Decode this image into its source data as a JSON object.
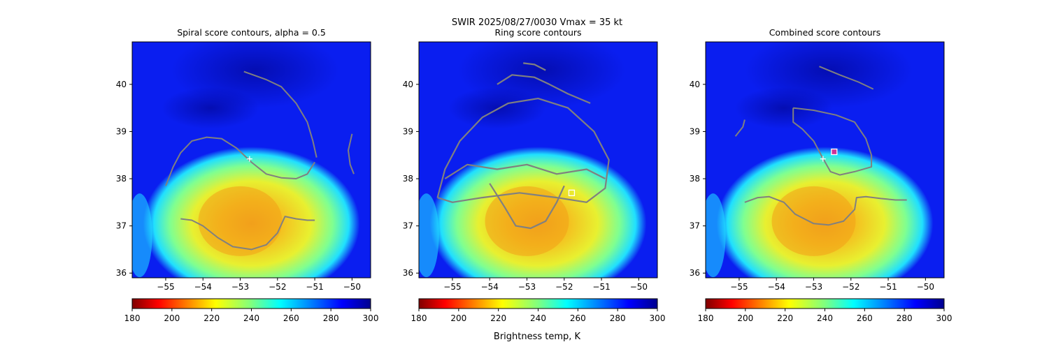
{
  "figure": {
    "suptitle_line": "SWIR  2025/08/27/0030    Vmax = 35 kt",
    "colorbar_label": "Brightness temp, K"
  },
  "chart_data": [
    {
      "type": "heatmap",
      "title": "Spiral score contours, alpha =  0.5",
      "x_ticks": [
        -55,
        -54,
        -53,
        -52,
        -51,
        -50
      ],
      "y_ticks": [
        36,
        37,
        38,
        39,
        40
      ],
      "xlim": [
        -55.9,
        -49.5
      ],
      "ylim": [
        35.9,
        40.9
      ],
      "center_marker": {
        "lon": -52.75,
        "lat": 38.42,
        "symbol": "+",
        "color": "#ffffff"
      },
      "colorbar": {
        "ticks": [
          180,
          200,
          220,
          240,
          260,
          280,
          300
        ],
        "range": [
          180,
          300
        ],
        "colormap": "jet_r"
      },
      "contours": [
        [
          [
            -55.0,
            37.85
          ],
          [
            -54.8,
            38.25
          ],
          [
            -54.6,
            38.55
          ],
          [
            -54.3,
            38.8
          ],
          [
            -53.9,
            38.88
          ],
          [
            -53.5,
            38.85
          ],
          [
            -53.1,
            38.65
          ],
          [
            -52.7,
            38.35
          ],
          [
            -52.3,
            38.1
          ],
          [
            -51.9,
            38.02
          ],
          [
            -51.5,
            38.0
          ],
          [
            -51.2,
            38.1
          ],
          [
            -51.0,
            38.35
          ]
        ],
        [
          [
            -52.9,
            40.27
          ],
          [
            -52.3,
            40.1
          ],
          [
            -51.9,
            39.95
          ],
          [
            -51.5,
            39.6
          ],
          [
            -51.2,
            39.2
          ],
          [
            -51.05,
            38.8
          ],
          [
            -50.95,
            38.45
          ]
        ],
        [
          [
            -50.0,
            38.95
          ],
          [
            -50.1,
            38.6
          ],
          [
            -50.05,
            38.3
          ],
          [
            -49.95,
            38.1
          ]
        ],
        [
          [
            -54.6,
            37.15
          ],
          [
            -54.3,
            37.12
          ],
          [
            -54.0,
            37.0
          ],
          [
            -53.6,
            36.75
          ],
          [
            -53.2,
            36.56
          ],
          [
            -52.7,
            36.5
          ],
          [
            -52.3,
            36.6
          ],
          [
            -52.0,
            36.85
          ],
          [
            -51.8,
            37.2
          ],
          [
            -51.5,
            37.15
          ],
          [
            -51.2,
            37.12
          ],
          [
            -51.0,
            37.12
          ]
        ]
      ]
    },
    {
      "type": "heatmap",
      "title": "Ring score contours",
      "x_ticks": [
        -55,
        -54,
        -53,
        -52,
        -51,
        -50
      ],
      "y_ticks": [
        36,
        37,
        38,
        39,
        40
      ],
      "xlim": [
        -55.9,
        -49.5
      ],
      "ylim": [
        35.9,
        40.9
      ],
      "center_marker": {
        "lon": -51.8,
        "lat": 37.7,
        "symbol": "square",
        "color": "#ffffff"
      },
      "colorbar": {
        "ticks": [
          180,
          200,
          220,
          240,
          260,
          280,
          300
        ],
        "range": [
          180,
          300
        ],
        "colormap": "jet_r"
      },
      "contours": [
        [
          [
            -55.4,
            37.6
          ],
          [
            -55.2,
            38.2
          ],
          [
            -54.8,
            38.8
          ],
          [
            -54.2,
            39.3
          ],
          [
            -53.5,
            39.6
          ],
          [
            -52.7,
            39.7
          ],
          [
            -51.9,
            39.5
          ],
          [
            -51.2,
            39.0
          ],
          [
            -50.8,
            38.4
          ],
          [
            -50.9,
            37.8
          ],
          [
            -51.4,
            37.5
          ],
          [
            -52.2,
            37.6
          ],
          [
            -53.2,
            37.7
          ],
          [
            -54.2,
            37.6
          ],
          [
            -55.0,
            37.5
          ],
          [
            -55.4,
            37.6
          ]
        ],
        [
          [
            -55.2,
            38.0
          ],
          [
            -54.6,
            38.3
          ],
          [
            -53.8,
            38.2
          ],
          [
            -53.0,
            38.3
          ],
          [
            -52.2,
            38.1
          ],
          [
            -51.4,
            38.2
          ],
          [
            -50.9,
            38.0
          ]
        ],
        [
          [
            -54.0,
            37.9
          ],
          [
            -53.6,
            37.4
          ],
          [
            -53.3,
            37.0
          ],
          [
            -52.9,
            36.95
          ],
          [
            -52.5,
            37.1
          ],
          [
            -52.2,
            37.5
          ],
          [
            -52.0,
            37.85
          ]
        ],
        [
          [
            -53.8,
            40.0
          ],
          [
            -53.4,
            40.2
          ],
          [
            -52.8,
            40.15
          ],
          [
            -52.4,
            40.0
          ],
          [
            -51.9,
            39.8
          ],
          [
            -51.3,
            39.6
          ]
        ],
        [
          [
            -53.1,
            40.45
          ],
          [
            -52.8,
            40.42
          ],
          [
            -52.5,
            40.3
          ]
        ]
      ]
    },
    {
      "type": "heatmap",
      "title": "Combined score contours",
      "x_ticks": [
        -55,
        -54,
        -53,
        -52,
        -51,
        -50
      ],
      "y_ticks": [
        36,
        37,
        38,
        39,
        40
      ],
      "xlim": [
        -55.9,
        -49.5
      ],
      "ylim": [
        35.9,
        40.9
      ],
      "center_marker": {
        "lon": -52.75,
        "lat": 38.42,
        "symbol": "+",
        "color": "#ffffff"
      },
      "secondary_marker": {
        "lon": -52.45,
        "lat": 38.57,
        "symbol": "square",
        "color": "#ffffff",
        "face": "#cc3399"
      },
      "colorbar": {
        "ticks": [
          180,
          200,
          220,
          240,
          260,
          280,
          300
        ],
        "range": [
          180,
          300
        ],
        "colormap": "jet_r"
      },
      "contours": [
        [
          [
            -52.85,
            40.38
          ],
          [
            -52.3,
            40.2
          ],
          [
            -51.8,
            40.05
          ],
          [
            -51.4,
            39.9
          ]
        ],
        [
          [
            -53.55,
            39.5
          ],
          [
            -53.0,
            39.45
          ],
          [
            -52.4,
            39.35
          ],
          [
            -51.9,
            39.2
          ],
          [
            -51.6,
            38.85
          ],
          [
            -51.45,
            38.5
          ],
          [
            -51.45,
            38.25
          ],
          [
            -51.9,
            38.15
          ],
          [
            -52.3,
            38.08
          ],
          [
            -52.55,
            38.15
          ],
          [
            -52.8,
            38.5
          ],
          [
            -53.0,
            38.8
          ],
          [
            -53.3,
            39.05
          ],
          [
            -53.55,
            39.2
          ],
          [
            -53.55,
            39.5
          ]
        ],
        [
          [
            -55.1,
            38.9
          ],
          [
            -54.9,
            39.1
          ],
          [
            -54.85,
            39.25
          ]
        ],
        [
          [
            -54.85,
            37.5
          ],
          [
            -54.5,
            37.6
          ],
          [
            -54.2,
            37.62
          ],
          [
            -53.8,
            37.5
          ],
          [
            -53.5,
            37.25
          ],
          [
            -53.0,
            37.05
          ],
          [
            -52.6,
            37.02
          ],
          [
            -52.2,
            37.1
          ],
          [
            -51.9,
            37.35
          ],
          [
            -51.85,
            37.6
          ],
          [
            -51.6,
            37.62
          ],
          [
            -51.2,
            37.58
          ],
          [
            -50.8,
            37.55
          ],
          [
            -50.5,
            37.55
          ]
        ]
      ]
    }
  ]
}
